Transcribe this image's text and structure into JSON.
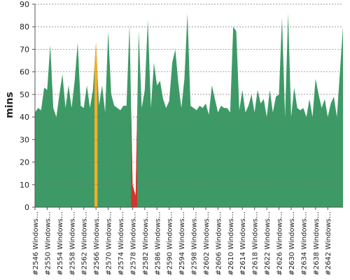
{
  "chart_data": {
    "type": "area",
    "y_label": "mins",
    "categories": [
      "#2546 Windows…",
      null,
      null,
      null,
      "#2550 Windows…",
      null,
      null,
      null,
      "#2554 Windows…",
      null,
      null,
      null,
      "#2558 Windows…",
      null,
      null,
      null,
      "#2562 Windows…",
      null,
      null,
      null,
      "#2566 Windows…",
      null,
      null,
      null,
      "#2570 Windows…",
      null,
      null,
      null,
      "#2574 Windows…",
      null,
      null,
      null,
      "#2578 Windows…",
      null,
      null,
      null,
      "#2582 Windows…",
      null,
      null,
      null,
      "#2586 Windows…",
      null,
      null,
      null,
      "#2590 Windows…",
      null,
      null,
      null,
      "#2594 Windows…",
      null,
      null,
      null,
      "#2598 Windows…",
      null,
      null,
      null,
      "#2602 Windows…",
      null,
      null,
      null,
      "#2606 Windows…",
      null,
      null,
      null,
      "#2610 Windows…",
      null,
      null,
      null,
      "#2614 Windows…",
      null,
      null,
      null,
      "#2618 Windows…",
      null,
      null,
      null,
      "#2622 Windows…",
      null,
      null,
      null,
      "#2626 Windows…",
      null,
      null,
      null,
      "#2630 Windows…",
      null,
      null,
      null,
      "#2634 Windows…",
      null,
      null,
      null,
      "#2638 Windows…",
      null,
      null,
      null,
      "#2642 Windows…",
      null,
      null,
      null,
      null,
      null
    ],
    "values": [
      42,
      44,
      43,
      53,
      52,
      72,
      44,
      40,
      50,
      59,
      44,
      54,
      44,
      56,
      73,
      45,
      44,
      54,
      44,
      52,
      73,
      45,
      54,
      42,
      78,
      50,
      45,
      44,
      43,
      45,
      45,
      81,
      10,
      5,
      78,
      44,
      52,
      83,
      44,
      64,
      54,
      56,
      48,
      44,
      47,
      64,
      70,
      55,
      44,
      57,
      86,
      45,
      44,
      43,
      45,
      44,
      46,
      41,
      54,
      48,
      42,
      45,
      44,
      44,
      42,
      80,
      78,
      43,
      52,
      42,
      45,
      50,
      42,
      52,
      46,
      48,
      40,
      52,
      42,
      49,
      50,
      84,
      40,
      86,
      40,
      53,
      44,
      43,
      44,
      40,
      48,
      40,
      57,
      50,
      44,
      48,
      40,
      46,
      49,
      40,
      60,
      80
    ],
    "color": "#3d9a66",
    "point_colors": {
      "20": "#f2ae2a",
      "32": "#d6332e",
      "33": "#d6332e"
    },
    "ylim": [
      0,
      90
    ],
    "yticks": [
      0,
      10,
      20,
      30,
      40,
      50,
      60,
      70,
      80,
      90
    ],
    "grid": true
  }
}
